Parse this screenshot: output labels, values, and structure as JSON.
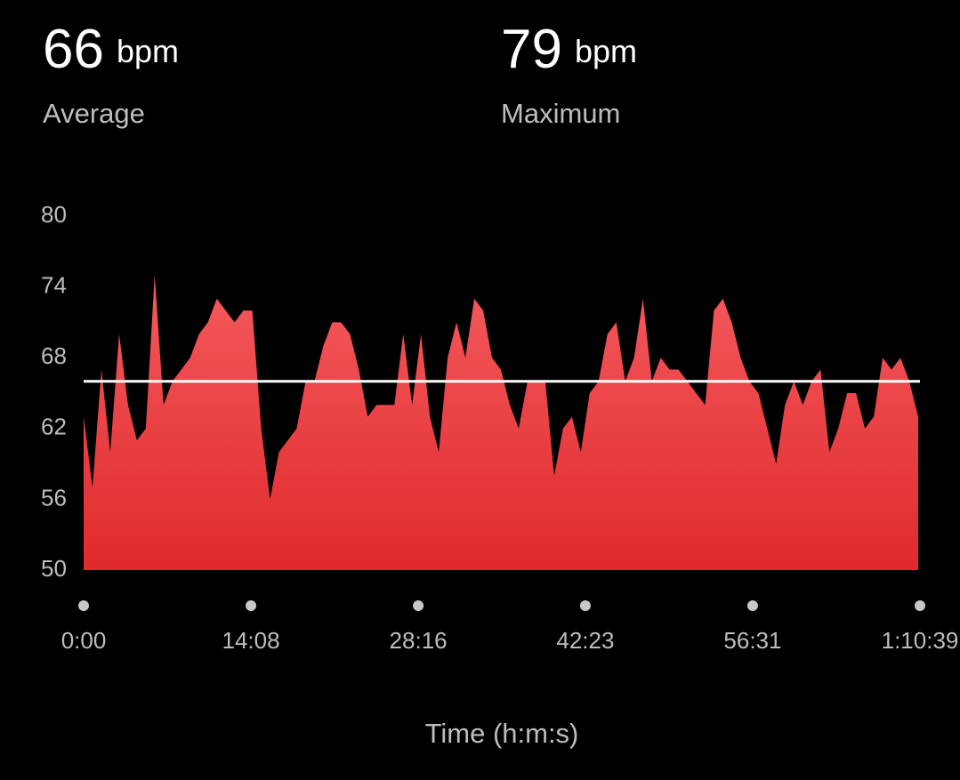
{
  "stats": [
    {
      "value": 66,
      "unit": "bpm",
      "label": "Average"
    },
    {
      "value": 79,
      "unit": "bpm",
      "label": "Maximum"
    }
  ],
  "chart_data": {
    "type": "area",
    "x_label": "Time (h:m:s)",
    "color": "#e8403f",
    "line_color": "#ffffff",
    "xlim": [
      0,
      4239
    ],
    "xticks": [
      {
        "value": 0,
        "label": "0:00"
      },
      {
        "value": 848,
        "label": "14:08"
      },
      {
        "value": 1696,
        "label": "28:16"
      },
      {
        "value": 2543,
        "label": "42:23"
      },
      {
        "value": 3391,
        "label": "56:31"
      },
      {
        "value": 4239,
        "label": "1:10:39"
      }
    ],
    "ylim": [
      50,
      80
    ],
    "yticks": [
      50,
      56,
      62,
      68,
      74,
      80
    ],
    "x": [
      0,
      45,
      90,
      135,
      180,
      225,
      270,
      315,
      360,
      405,
      450,
      495,
      540,
      585,
      630,
      675,
      720,
      765,
      810,
      855,
      900,
      945,
      990,
      1035,
      1080,
      1125,
      1170,
      1215,
      1260,
      1305,
      1350,
      1395,
      1440,
      1485,
      1530,
      1575,
      1620,
      1665,
      1710,
      1755,
      1800,
      1845,
      1890,
      1935,
      1980,
      2025,
      2070,
      2115,
      2160,
      2205,
      2250,
      2295,
      2340,
      2385,
      2430,
      2475,
      2520,
      2565,
      2610,
      2655,
      2700,
      2745,
      2790,
      2835,
      2880,
      2925,
      2970,
      3015,
      3060,
      3105,
      3150,
      3195,
      3240,
      3285,
      3330,
      3375,
      3420,
      3465,
      3510,
      3555,
      3600,
      3645,
      3690,
      3735,
      3780,
      3825,
      3870,
      3915,
      3960,
      4005,
      4050,
      4095,
      4140,
      4185,
      4230
    ],
    "values": [
      63,
      57,
      67,
      60,
      70,
      64,
      61,
      62,
      75,
      64,
      66,
      67,
      68,
      70,
      71,
      73,
      72,
      71,
      72,
      72,
      62,
      56,
      60,
      61,
      62,
      66,
      66,
      69,
      71,
      71,
      70,
      67,
      63,
      64,
      64,
      64,
      70,
      64,
      70,
      63,
      60,
      68,
      71,
      68,
      73,
      72,
      68,
      67,
      64,
      62,
      66,
      66,
      66,
      58,
      62,
      63,
      60,
      65,
      66,
      70,
      71,
      66,
      68,
      73,
      66,
      68,
      67,
      67,
      66,
      65,
      64,
      72,
      73,
      71,
      68,
      66,
      65,
      62,
      59,
      64,
      66,
      64,
      66,
      67,
      60,
      62,
      65,
      65,
      62,
      63,
      68,
      67,
      68,
      66,
      63
    ]
  }
}
